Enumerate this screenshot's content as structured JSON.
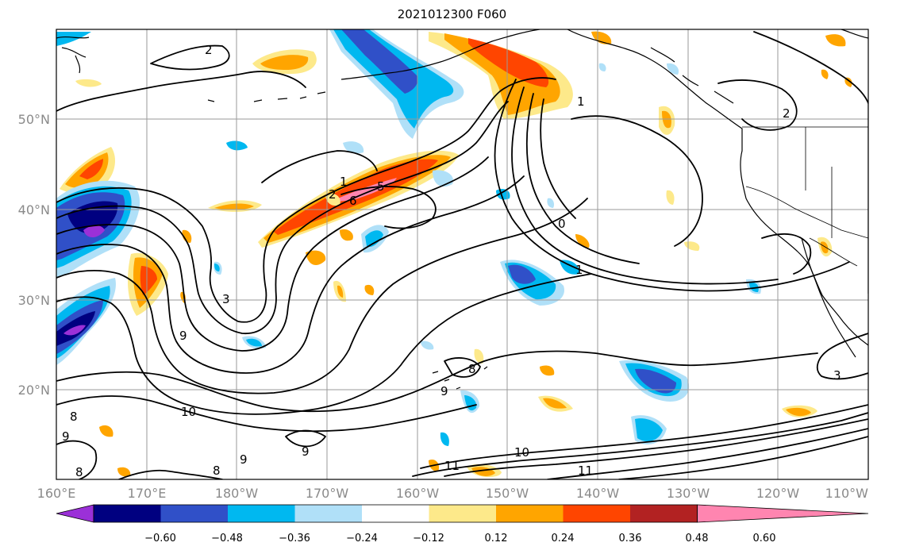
{
  "title": "2021012300 F060",
  "axes": {
    "lon_labels": [
      "160°E",
      "170°E",
      "180°W",
      "170°W",
      "160°W",
      "150°W",
      "140°W",
      "130°W",
      "120°W",
      "110°W"
    ],
    "lat_labels": [
      "50°N",
      "40°N",
      "30°N",
      "20°N"
    ]
  },
  "contour_labels": [
    "2",
    "2",
    "1",
    "1",
    "2",
    "6",
    "5",
    "0",
    "1",
    "3",
    "9",
    "8",
    "9",
    "10",
    "10",
    "11",
    "11",
    "9",
    "8",
    "8",
    "8",
    "9",
    "9",
    "3"
  ],
  "colorbar": {
    "tick_labels": [
      "−0.60",
      "−0.48",
      "−0.36",
      "−0.24",
      "−0.12",
      "0.12",
      "0.24",
      "0.36",
      "0.48",
      "0.60"
    ],
    "colors": [
      "#9b30d8",
      "#000080",
      "#3050c8",
      "#00b8f0",
      "#b0e0f8",
      "#ffffff",
      "#fde98a",
      "#ffa500",
      "#ff4500",
      "#b22222",
      "#ff85b0"
    ]
  }
}
